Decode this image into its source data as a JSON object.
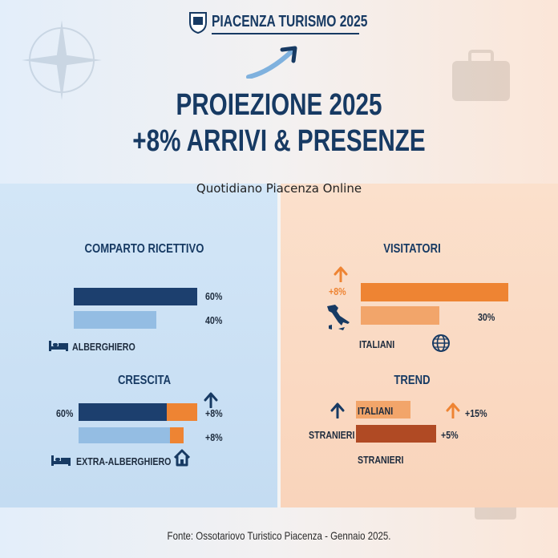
{
  "header": {
    "brand": "PIACENZA TURISMO 2025",
    "title_line1": "PROIEZIONE 2025",
    "title_line2": "+8% ARRIVI & PRESENZE",
    "source_overlay": "Quotidiano Piacenza Online"
  },
  "left_panel": {
    "comparto": {
      "heading": "COMPARTO RICETTIVO",
      "bars": [
        {
          "value": 60,
          "label": "60%",
          "color": "#1c3f6e"
        },
        {
          "value": 40,
          "label": "40%",
          "color": "#94bde3"
        }
      ],
      "legend": "ALBERGHIERO"
    },
    "crescita": {
      "heading": "CRESCITA",
      "left_label": "60%",
      "rows": [
        {
          "base_color": "#1c3f6e",
          "growth_label": "+8%"
        },
        {
          "base_color": "#94bde3",
          "growth_label": "+8%"
        }
      ],
      "growth_color": "#ee8433",
      "legend": "EXTRA-ALBERGHIERO"
    }
  },
  "right_panel": {
    "visitatori": {
      "heading": "VISITATORI",
      "growth_label": "+8%",
      "bars": [
        {
          "color": "#ee8433",
          "label": ""
        },
        {
          "color": "#f2a56a",
          "label": "30%"
        }
      ],
      "legend": "ITALIANI"
    },
    "trend": {
      "heading": "TREND",
      "bar1_label": "ITALIANI",
      "bar1_growth": "+15%",
      "bar2_left_label": "STRANIERI",
      "bar2_growth": "+5%",
      "bottom_label": "STRANIERI",
      "colors": {
        "italiani": "#f2a56a",
        "stranieri": "#b04a24"
      }
    }
  },
  "footer": {
    "source": "Fonte: Ossotariovo Turistico Piacenza - Gennaio 2025."
  },
  "colors": {
    "navy": "#173a63",
    "orange": "#ee8433"
  },
  "icons": [
    "shield-icon",
    "trend-arrow-icon",
    "bed-icon",
    "house-icon",
    "italy-map-icon",
    "globe-icon",
    "arrow-up-icon",
    "compass-icon",
    "suitcase-icon"
  ]
}
